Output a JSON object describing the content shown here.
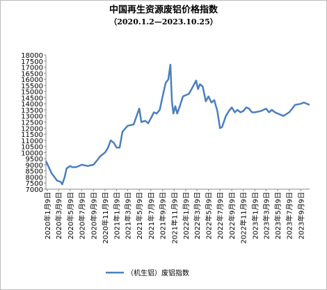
{
  "chart_data": {
    "type": "line",
    "title": "中国再生资源废铝价格指数",
    "subtitle": "（2020.1.2—2023.10.25）",
    "x": [
      "2020-01-02",
      "2020-02-01",
      "2020-03-01",
      "2020-03-20",
      "2020-03-28",
      "2020-04-10",
      "2020-04-20",
      "2020-05-09",
      "2020-05-20",
      "2020-06-09",
      "2020-07-09",
      "2020-08-09",
      "2020-09-09",
      "2020-09-25",
      "2020-10-15",
      "2020-11-09",
      "2020-11-25",
      "2020-12-09",
      "2020-12-25",
      "2021-01-09",
      "2021-01-25",
      "2021-02-09",
      "2021-02-25",
      "2021-03-09",
      "2021-04-09",
      "2021-04-25",
      "2021-05-09",
      "2021-05-20",
      "2021-06-09",
      "2021-06-25",
      "2021-07-09",
      "2021-07-25",
      "2021-08-09",
      "2021-08-25",
      "2021-09-09",
      "2021-09-25",
      "2021-10-09",
      "2021-10-20",
      "2021-10-28",
      "2021-11-05",
      "2021-11-15",
      "2021-11-25",
      "2021-12-09",
      "2021-12-25",
      "2022-01-09",
      "2022-01-25",
      "2022-02-09",
      "2022-03-05",
      "2022-03-15",
      "2022-03-25",
      "2022-04-09",
      "2022-04-25",
      "2022-05-09",
      "2022-05-25",
      "2022-06-09",
      "2022-06-25",
      "2022-07-09",
      "2022-07-20",
      "2022-08-09",
      "2022-08-25",
      "2022-09-09",
      "2022-09-25",
      "2022-10-09",
      "2022-10-25",
      "2022-11-09",
      "2022-11-25",
      "2022-12-09",
      "2022-12-25",
      "2023-01-09",
      "2023-02-09",
      "2023-03-09",
      "2023-03-25",
      "2023-04-09",
      "2023-04-25",
      "2023-05-09",
      "2023-06-09",
      "2023-07-09",
      "2023-07-25",
      "2023-08-09",
      "2023-09-09",
      "2023-09-25",
      "2023-10-25"
    ],
    "series": [
      {
        "name": "（机生铝）废铝指数",
        "color": "#4a7ebf",
        "values": [
          9300,
          8300,
          7700,
          7600,
          7400,
          8000,
          8700,
          8900,
          8800,
          8800,
          9000,
          8900,
          9000,
          9300,
          9700,
          10000,
          10400,
          11000,
          10800,
          10400,
          10400,
          11700,
          12000,
          12200,
          12300,
          13000,
          13600,
          12500,
          12600,
          12400,
          12800,
          13300,
          13200,
          13500,
          14600,
          15700,
          16000,
          17200,
          14200,
          13200,
          13800,
          13200,
          13800,
          14600,
          14700,
          14800,
          15200,
          15900,
          15200,
          15600,
          15400,
          14200,
          14600,
          14100,
          14300,
          13400,
          12000,
          12100,
          13000,
          13400,
          13700,
          13300,
          13500,
          13300,
          13400,
          13700,
          13600,
          13300,
          13300,
          13400,
          13600,
          13300,
          13500,
          13300,
          13200,
          13000,
          13300,
          13600,
          13900,
          14000,
          14100,
          13900
        ]
      }
    ],
    "xlim": [
      "2020-01-02",
      "2023-10-25"
    ],
    "xticks": [
      {
        "value": "2020-01-09",
        "label": "2020年1月9日"
      },
      {
        "value": "2020-03-09",
        "label": "2020年3月9日"
      },
      {
        "value": "2020-05-09",
        "label": "2020年5月9日"
      },
      {
        "value": "2020-07-09",
        "label": "2020年7月9日"
      },
      {
        "value": "2020-09-09",
        "label": "2020年9月9日"
      },
      {
        "value": "2020-11-09",
        "label": "2020年11月9日"
      },
      {
        "value": "2021-01-09",
        "label": "2021年1月9日"
      },
      {
        "value": "2021-03-09",
        "label": "2021年3月9日"
      },
      {
        "value": "2021-05-09",
        "label": "2021年5月9日"
      },
      {
        "value": "2021-07-09",
        "label": "2021年7月9日"
      },
      {
        "value": "2021-09-09",
        "label": "2021年9月9日"
      },
      {
        "value": "2021-11-09",
        "label": "2021年11月9日"
      },
      {
        "value": "2022-01-09",
        "label": "2022年1月9日"
      },
      {
        "value": "2022-03-09",
        "label": "2022年3月9日"
      },
      {
        "value": "2022-05-09",
        "label": "2022年5月9日"
      },
      {
        "value": "2022-07-09",
        "label": "2022年7月9日"
      },
      {
        "value": "2022-09-09",
        "label": "2022年9月9日"
      },
      {
        "value": "2022-11-09",
        "label": "2022年11月9日"
      },
      {
        "value": "2023-01-09",
        "label": "2023年1月9日"
      },
      {
        "value": "2023-03-09",
        "label": "2023年3月9日"
      },
      {
        "value": "2023-05-09",
        "label": "2023年5月9日"
      },
      {
        "value": "2023-07-09",
        "label": "2023年7月9日"
      },
      {
        "value": "2023-09-09",
        "label": "2023年9月9日"
      }
    ],
    "ylim": [
      7000,
      18000
    ],
    "yticks": [
      7000,
      7500,
      8000,
      8500,
      9000,
      9500,
      10000,
      10500,
      11000,
      11500,
      12000,
      12500,
      13000,
      13500,
      14000,
      14500,
      15000,
      15500,
      16000,
      16500,
      17000,
      17500,
      18000
    ],
    "legend": "bottom"
  }
}
